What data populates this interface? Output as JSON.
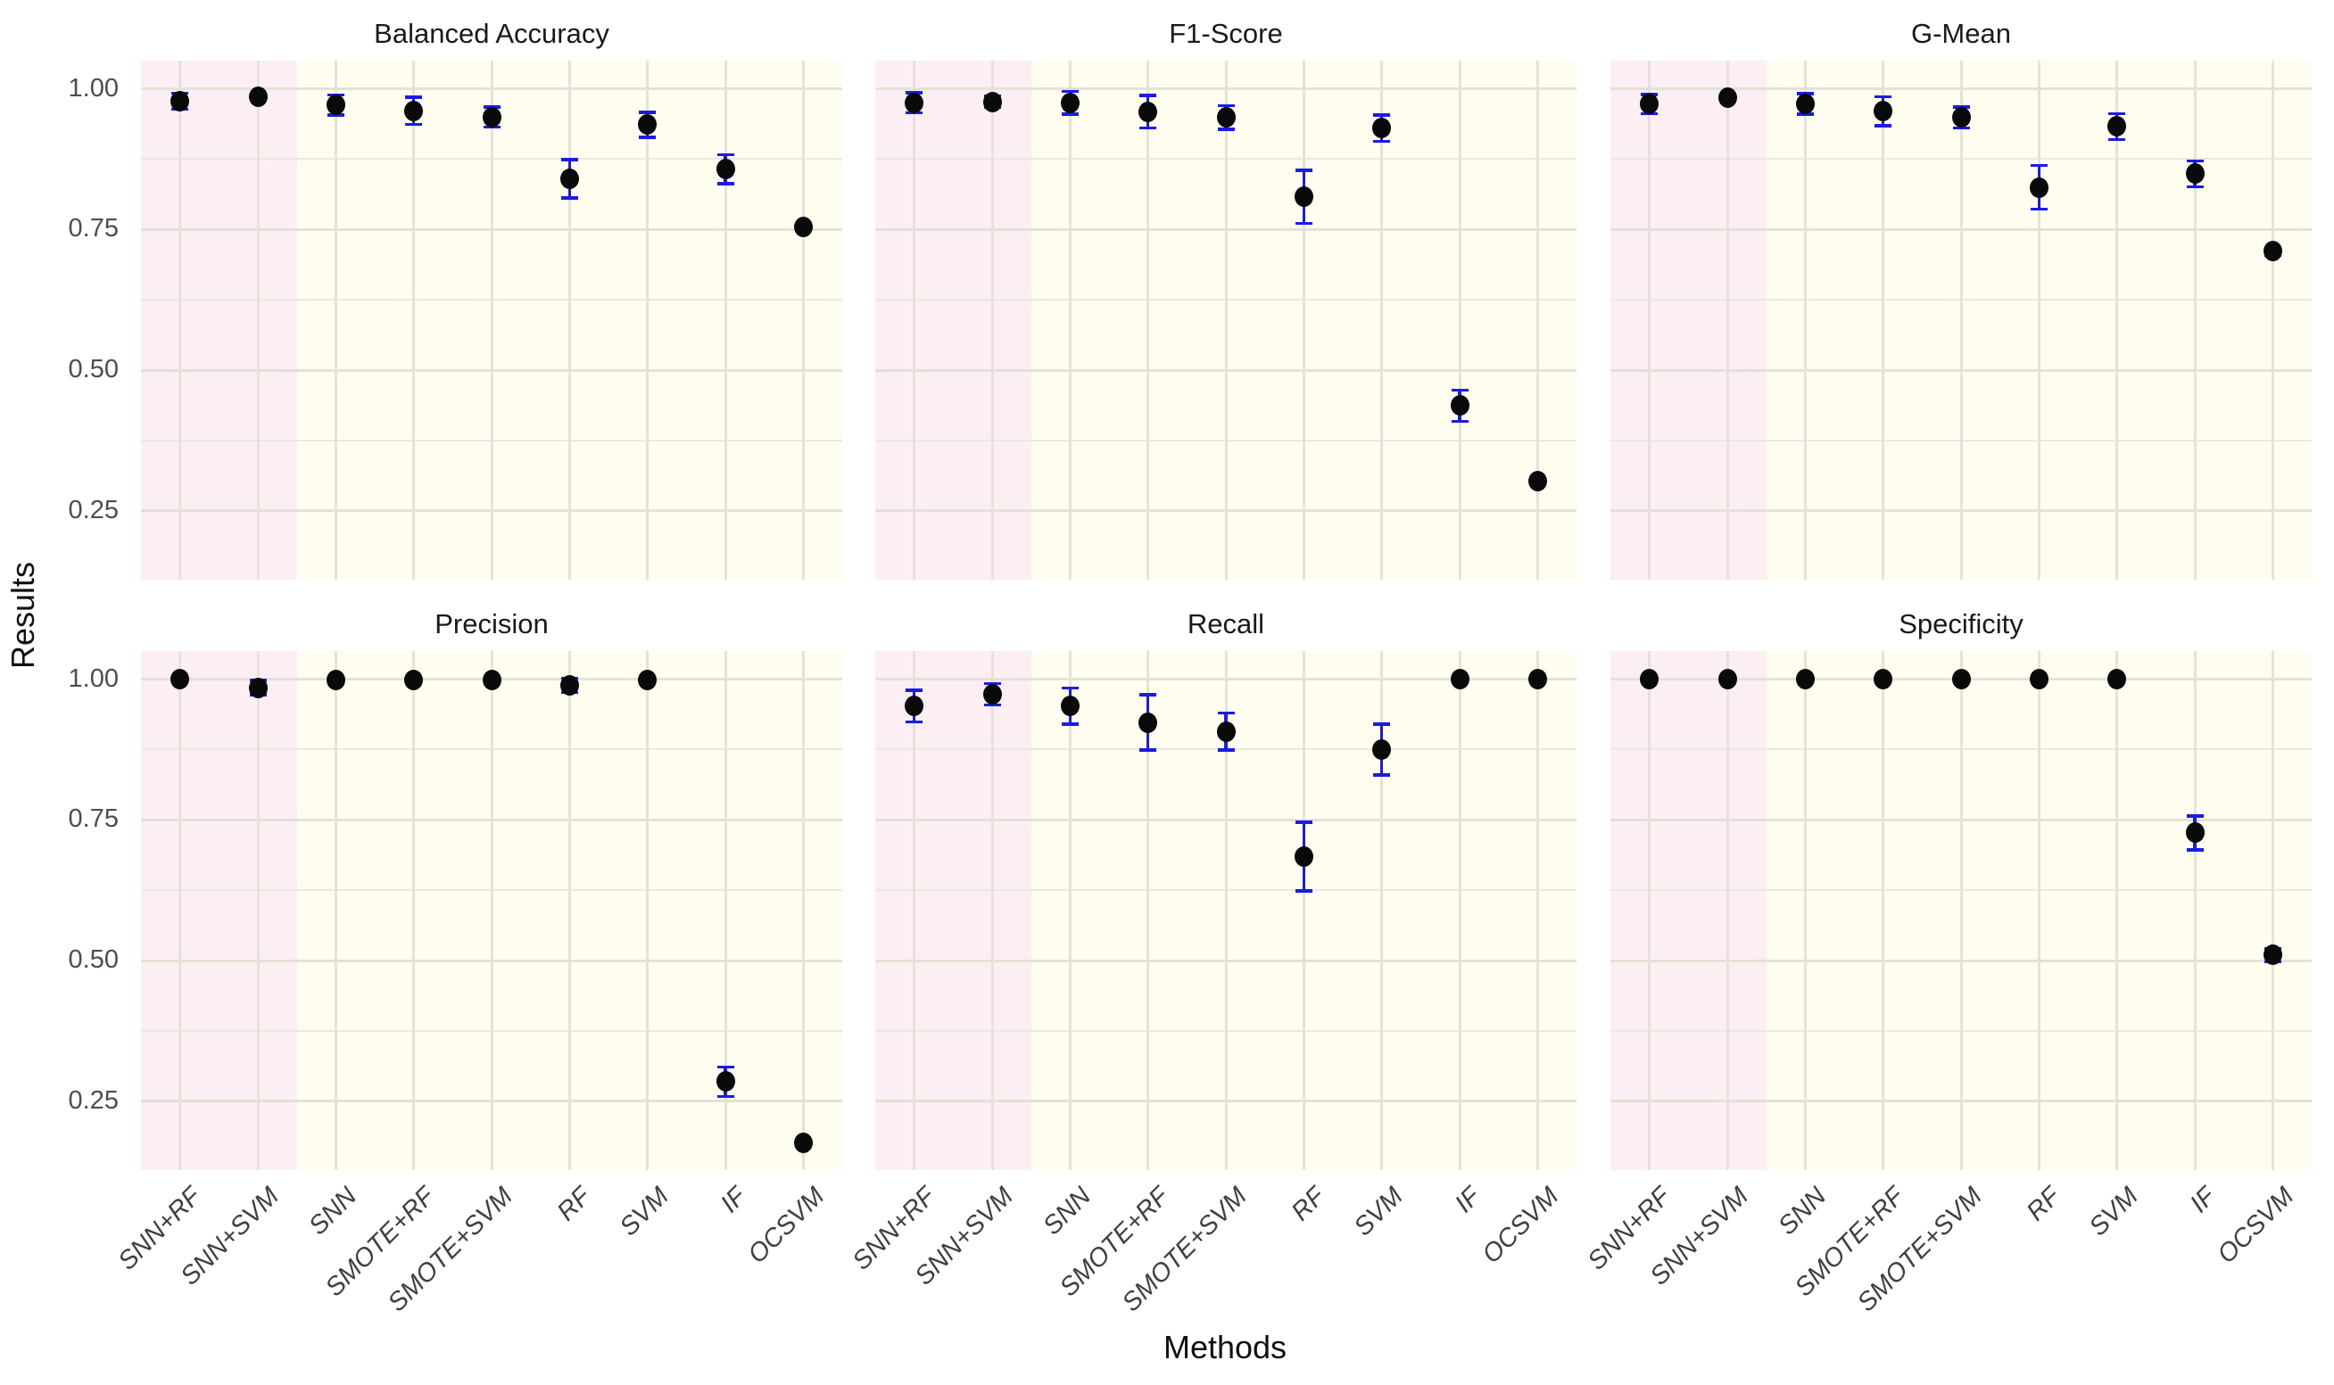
{
  "figure": {
    "xlab": "Methods",
    "ylab": "Results"
  },
  "chart_data": {
    "type": "scatter",
    "title": "",
    "xlabel": "Methods",
    "ylabel": "Results",
    "categories": [
      "SNN+RF",
      "SNN+SVM",
      "SNN",
      "SMOTE+RF",
      "SMOTE+SVM",
      "RF",
      "SVM",
      "IF",
      "OCSVM"
    ],
    "ylim": [
      0.128,
      1.05
    ],
    "yticks": [
      {
        "label": "1.00",
        "value": 1.0
      },
      {
        "label": "0.75",
        "value": 0.75
      },
      {
        "label": "0.50",
        "value": 0.5
      },
      {
        "label": "0.25",
        "value": 0.25
      }
    ],
    "minor_gridlines": [
      0.875,
      0.625,
      0.375
    ],
    "grid": true,
    "legend_position": "none",
    "facets": [
      {
        "title": "Balanced Accuracy",
        "row": 0,
        "col": 0,
        "values": [
          0.978,
          0.986,
          0.971,
          0.961,
          0.95,
          0.84,
          0.936,
          0.857,
          0.754
        ],
        "errors": [
          0.014,
          0.004,
          0.018,
          0.024,
          0.018,
          0.034,
          0.022,
          0.026,
          0.004
        ]
      },
      {
        "title": "F1-Score",
        "row": 0,
        "col": 1,
        "values": [
          0.975,
          0.977,
          0.975,
          0.959,
          0.949,
          0.808,
          0.93,
          0.437,
          0.303
        ],
        "errors": [
          0.018,
          0.01,
          0.02,
          0.029,
          0.021,
          0.047,
          0.023,
          0.028,
          0.003
        ]
      },
      {
        "title": "G-Mean",
        "row": 0,
        "col": 2,
        "values": [
          0.973,
          0.985,
          0.973,
          0.96,
          0.949,
          0.825,
          0.933,
          0.849,
          0.711
        ],
        "errors": [
          0.017,
          0.004,
          0.018,
          0.026,
          0.019,
          0.039,
          0.023,
          0.023,
          0.006
        ]
      },
      {
        "title": "Precision",
        "row": 1,
        "col": 0,
        "values": [
          1.0,
          0.985,
          0.999,
          0.998,
          0.999,
          0.989,
          0.998,
          0.285,
          0.177
        ],
        "errors": [
          0,
          0.013,
          0,
          0,
          0,
          0.013,
          0,
          0.026,
          0.004
        ]
      },
      {
        "title": "Recall",
        "row": 1,
        "col": 1,
        "values": [
          0.952,
          0.973,
          0.952,
          0.923,
          0.907,
          0.685,
          0.875,
          1.0,
          1.0
        ],
        "errors": [
          0.028,
          0.019,
          0.032,
          0.049,
          0.033,
          0.061,
          0.045,
          0,
          0
        ]
      },
      {
        "title": "Specificity",
        "row": 1,
        "col": 2,
        "values": [
          1.0,
          1.0,
          1.0,
          1.0,
          1.0,
          1.0,
          1.0,
          0.727,
          0.51
        ],
        "errors": [
          0,
          0,
          0,
          0,
          0,
          0,
          0,
          0.03,
          0.012
        ]
      }
    ],
    "highlight_bands": {
      "pink_categories": [
        "SNN+RF",
        "SNN+SVM"
      ],
      "pink_color": "#fbeff3",
      "ivory_color": "#fffdf0"
    },
    "colors": {
      "point": "#0a0a0a",
      "errorbar": "#1b1be8",
      "grid_major": "#e4e1d9",
      "grid_minor": "#eae8e1",
      "grid_vertical": "#e6e2da"
    }
  }
}
